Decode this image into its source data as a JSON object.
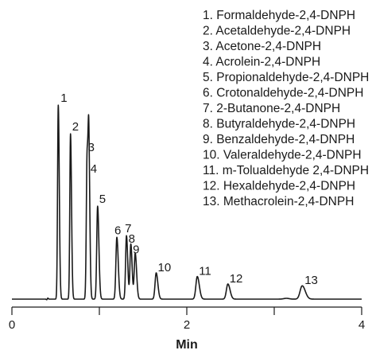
{
  "chart_data": {
    "type": "line",
    "title": "",
    "xlabel": "Min",
    "ylabel": "",
    "xlim": [
      0,
      4
    ],
    "ylim": [
      0,
      1
    ],
    "x_ticks": [
      0,
      1,
      2,
      3,
      4
    ],
    "x_tick_labels": [
      "0",
      "",
      "2",
      "",
      "4"
    ],
    "grid": false,
    "legend_position": "top-right",
    "line_color": "#1a1a1a",
    "legend": [
      "1. Formaldehyde-2,4-DNPH",
      "2. Acetaldehyde-2,4-DNPH",
      "3. Acetone-2,4-DNPH",
      "4. Acrolein-2,4-DNPH",
      "5. Propionaldehyde-2,4-DNPH",
      "6. Crotonaldehyde-2,4-DNPH",
      "7. 2-Butanone-2,4-DNPH",
      "8. Butyraldehyde-2,4-DNPH",
      "9. Benzaldehyde-2,4-DNPH",
      "10. Valeraldehyde-2,4-DNPH",
      "11. m-Tolualdehyde 2,4-DNPH",
      "12. Hexaldehyde-2,4-DNPH",
      "13. Methacrolein-2,4-DNPH"
    ],
    "peaks": [
      {
        "label": "1",
        "time": 0.53,
        "height": 0.96,
        "width": 0.008
      },
      {
        "label": "2",
        "time": 0.67,
        "height": 0.818,
        "width": 0.008
      },
      {
        "label": "3",
        "time": 0.86,
        "height": 0.716,
        "width": 0.009
      },
      {
        "label": "4",
        "time": 0.88,
        "height": 0.65,
        "width": 0.008
      },
      {
        "label": "5",
        "time": 0.98,
        "height": 0.46,
        "width": 0.01
      },
      {
        "label": "6",
        "time": 1.2,
        "height": 0.306,
        "width": 0.011
      },
      {
        "label": "7",
        "time": 1.31,
        "height": 0.314,
        "width": 0.01
      },
      {
        "label": "8",
        "time": 1.36,
        "height": 0.272,
        "width": 0.01
      },
      {
        "label": "9",
        "time": 1.41,
        "height": 0.227,
        "width": 0.011
      },
      {
        "label": "10",
        "time": 1.65,
        "height": 0.13,
        "width": 0.013
      },
      {
        "label": "11",
        "time": 2.12,
        "height": 0.112,
        "width": 0.016
      },
      {
        "label": "12",
        "time": 2.47,
        "height": 0.075,
        "width": 0.017
      },
      {
        "label": "13",
        "time": 3.32,
        "height": 0.066,
        "width": 0.024
      }
    ]
  }
}
